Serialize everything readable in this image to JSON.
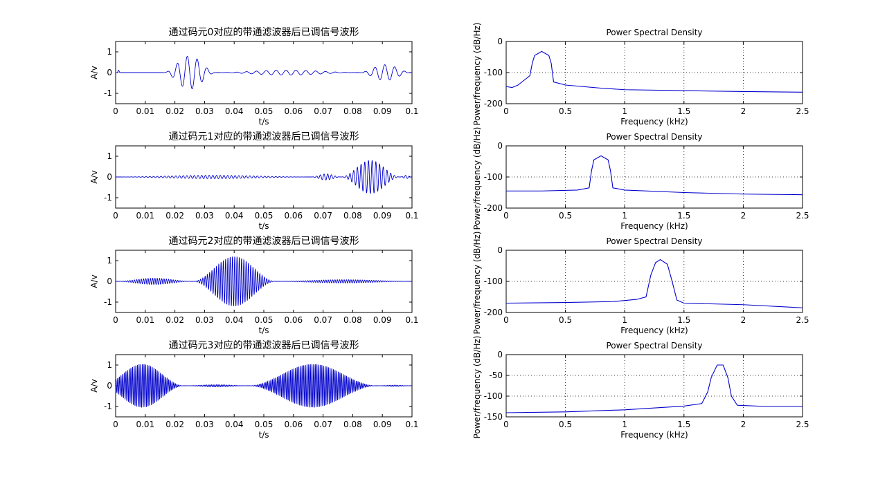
{
  "colors": {
    "line": "#0000cc",
    "axes": "#000000",
    "grid": "#000000",
    "background": "#ffffff"
  },
  "chart_data": [
    {
      "type": "line",
      "title": "通过码元0对应的带通滤波器后已调信号波形",
      "xlabel": "t/s",
      "ylabel": "A/v",
      "xlim": [
        0,
        0.1
      ],
      "ylim": [
        -1.5,
        1.5
      ],
      "xticks": [
        "0",
        "0.01",
        "0.02",
        "0.03",
        "0.04",
        "0.05",
        "0.06",
        "0.07",
        "0.08",
        "0.09",
        "0.1"
      ],
      "yticks": [
        "1",
        "0",
        "-1"
      ],
      "grid": false,
      "signal": {
        "carrier_hz": 300,
        "bursts": [
          {
            "t0": 0.0005,
            "t1": 0.0015,
            "amp": 0.12
          },
          {
            "t0": 0.016,
            "t1": 0.034,
            "amp": 0.8
          },
          {
            "t0": 0.034,
            "t1": 0.082,
            "amp": 0.12
          },
          {
            "t0": 0.082,
            "t1": 0.1,
            "amp": 0.38
          }
        ]
      }
    },
    {
      "type": "line",
      "title": "Power Spectral Density",
      "xlabel": "Frequency (kHz)",
      "ylabel": "Power/frequency (dB/Hz)",
      "xlim": [
        0,
        2.5
      ],
      "ylim": [
        -200,
        0
      ],
      "xticks": [
        "0",
        "0.5",
        "1",
        "1.5",
        "2",
        "2.5"
      ],
      "yticks": [
        "0",
        "-100",
        "-200"
      ],
      "grid": true,
      "points": [
        [
          0,
          -145
        ],
        [
          0.05,
          -148
        ],
        [
          0.1,
          -140
        ],
        [
          0.15,
          -125
        ],
        [
          0.2,
          -110
        ],
        [
          0.22,
          -70
        ],
        [
          0.24,
          -45
        ],
        [
          0.3,
          -32
        ],
        [
          0.36,
          -45
        ],
        [
          0.38,
          -70
        ],
        [
          0.4,
          -130
        ],
        [
          0.5,
          -140
        ],
        [
          0.8,
          -150
        ],
        [
          1.0,
          -155
        ],
        [
          1.5,
          -158
        ],
        [
          2.0,
          -161
        ],
        [
          2.5,
          -163
        ]
      ]
    },
    {
      "type": "line",
      "title": "通过码元1对应的带通滤波器后已调信号波形",
      "xlabel": "t/s",
      "ylabel": "A/v",
      "xlim": [
        0,
        0.1
      ],
      "ylim": [
        -1.5,
        1.5
      ],
      "xticks": [
        "0",
        "0.01",
        "0.02",
        "0.03",
        "0.04",
        "0.05",
        "0.06",
        "0.07",
        "0.08",
        "0.09",
        "0.1"
      ],
      "yticks": [
        "1",
        "0",
        "-1"
      ],
      "grid": false,
      "signal": {
        "carrier_hz": 800,
        "bursts": [
          {
            "t0": 0.0,
            "t1": 0.066,
            "amp": 0.08
          },
          {
            "t0": 0.066,
            "t1": 0.076,
            "amp": 0.15
          },
          {
            "t0": 0.076,
            "t1": 0.096,
            "amp": 0.8
          },
          {
            "t0": 0.096,
            "t1": 0.1,
            "amp": 0.08
          }
        ]
      }
    },
    {
      "type": "line",
      "title": "Power Spectral Density",
      "xlabel": "Frequency (kHz)",
      "ylabel": "Power/frequency (dB/Hz)",
      "xlim": [
        0,
        2.5
      ],
      "ylim": [
        -200,
        0
      ],
      "xticks": [
        "0",
        "0.5",
        "1",
        "1.5",
        "2",
        "2.5"
      ],
      "yticks": [
        "0",
        "-100",
        "-200"
      ],
      "grid": true,
      "points": [
        [
          0,
          -145
        ],
        [
          0.3,
          -145
        ],
        [
          0.6,
          -142
        ],
        [
          0.7,
          -135
        ],
        [
          0.72,
          -80
        ],
        [
          0.74,
          -45
        ],
        [
          0.8,
          -32
        ],
        [
          0.86,
          -45
        ],
        [
          0.88,
          -80
        ],
        [
          0.9,
          -135
        ],
        [
          1.0,
          -142
        ],
        [
          1.5,
          -150
        ],
        [
          2.0,
          -155
        ],
        [
          2.5,
          -157
        ]
      ]
    },
    {
      "type": "line",
      "title": "通过码元2对应的带通滤波器后已调信号波形",
      "xlabel": "t/s",
      "ylabel": "A/v",
      "xlim": [
        0,
        0.1
      ],
      "ylim": [
        -1.5,
        1.5
      ],
      "xticks": [
        "0",
        "0.01",
        "0.02",
        "0.03",
        "0.04",
        "0.05",
        "0.06",
        "0.07",
        "0.08",
        "0.09",
        "0.1"
      ],
      "yticks": [
        "1",
        "0",
        "-1"
      ],
      "grid": false,
      "signal": {
        "carrier_hz": 1300,
        "bursts": [
          {
            "t0": 0.0,
            "t1": 0.026,
            "amp": 0.15
          },
          {
            "t0": 0.026,
            "t1": 0.054,
            "amp": 1.2
          },
          {
            "t0": 0.054,
            "t1": 0.1,
            "amp": 0.08
          }
        ]
      }
    },
    {
      "type": "line",
      "title": "Power Spectral Density",
      "xlabel": "Frequency (kHz)",
      "ylabel": "Power/frequency (dB/Hz)",
      "xlim": [
        0,
        2.5
      ],
      "ylim": [
        -200,
        0
      ],
      "xticks": [
        "0",
        "0.5",
        "1",
        "1.5",
        "2",
        "2.5"
      ],
      "yticks": [
        "0",
        "-100",
        "-200"
      ],
      "grid": true,
      "points": [
        [
          0,
          -170
        ],
        [
          0.5,
          -168
        ],
        [
          0.9,
          -165
        ],
        [
          1.1,
          -158
        ],
        [
          1.18,
          -150
        ],
        [
          1.22,
          -80
        ],
        [
          1.26,
          -40
        ],
        [
          1.3,
          -30
        ],
        [
          1.36,
          -45
        ],
        [
          1.4,
          -100
        ],
        [
          1.44,
          -160
        ],
        [
          1.5,
          -170
        ],
        [
          2.0,
          -175
        ],
        [
          2.5,
          -185
        ]
      ]
    },
    {
      "type": "line",
      "title": "通过码元3对应的带通滤波器后已调信号波形",
      "xlabel": "t/s",
      "ylabel": "A/v",
      "xlim": [
        0,
        0.1
      ],
      "ylim": [
        -1.5,
        1.5
      ],
      "xticks": [
        "0",
        "0.01",
        "0.02",
        "0.03",
        "0.04",
        "0.05",
        "0.06",
        "0.07",
        "0.08",
        "0.09",
        "0.1"
      ],
      "yticks": [
        "1",
        "0",
        "-1"
      ],
      "grid": false,
      "signal": {
        "carrier_hz": 1800,
        "bursts": [
          {
            "t0": -0.005,
            "t1": 0.023,
            "amp": 1.05
          },
          {
            "t0": 0.023,
            "t1": 0.045,
            "amp": 0.05
          },
          {
            "t0": 0.045,
            "t1": 0.088,
            "amp": 1.05
          },
          {
            "t0": 0.088,
            "t1": 0.1,
            "amp": 0.03
          }
        ]
      }
    },
    {
      "type": "line",
      "title": "Power Spectral Density",
      "xlabel": "Frequency (kHz)",
      "ylabel": "Power/frequency (dB/Hz)",
      "xlim": [
        0,
        2.5
      ],
      "ylim": [
        -150,
        0
      ],
      "xticks": [
        "0",
        "0.5",
        "1",
        "1.5",
        "2",
        "2.5"
      ],
      "yticks": [
        "0",
        "-50",
        "-100",
        "-150"
      ],
      "grid": true,
      "points": [
        [
          0,
          -140
        ],
        [
          0.5,
          -138
        ],
        [
          1.0,
          -133
        ],
        [
          1.5,
          -124
        ],
        [
          1.65,
          -118
        ],
        [
          1.7,
          -90
        ],
        [
          1.73,
          -55
        ],
        [
          1.78,
          -25
        ],
        [
          1.83,
          -25
        ],
        [
          1.87,
          -55
        ],
        [
          1.9,
          -100
        ],
        [
          1.95,
          -122
        ],
        [
          2.2,
          -125
        ],
        [
          2.5,
          -125
        ]
      ]
    }
  ]
}
